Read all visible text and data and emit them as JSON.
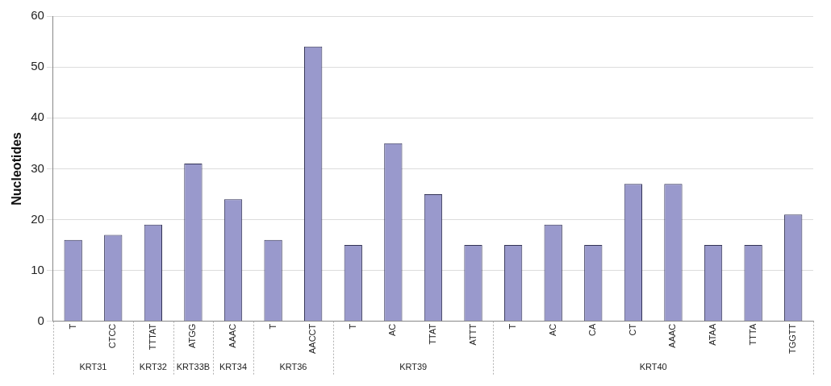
{
  "chart_data": {
    "type": "bar",
    "ylabel": "Nucleotides",
    "categories": [
      "T",
      "CTCC",
      "TTTAT",
      "ATGG",
      "AAAC",
      "T",
      "AACCT",
      "T",
      "AC",
      "TTAT",
      "ATTT",
      "T",
      "AC",
      "CA",
      "CT",
      "AAAC",
      "ATAA",
      "TTTA",
      "TGGTT"
    ],
    "values": [
      16,
      17,
      19,
      31,
      24,
      16,
      54,
      15,
      35,
      25,
      15,
      15,
      19,
      15,
      27,
      27,
      15,
      15,
      21
    ],
    "color": "#9999cc",
    "ylim": [
      0,
      60
    ],
    "yticks": [
      0,
      10,
      20,
      30,
      40,
      50,
      60
    ],
    "grid": "y",
    "legend": false,
    "annotations": [
      "KRT31",
      "KRT32",
      "KRT33B",
      "KRT34",
      "KRT36",
      "KRT39",
      "KRT40"
    ]
  }
}
